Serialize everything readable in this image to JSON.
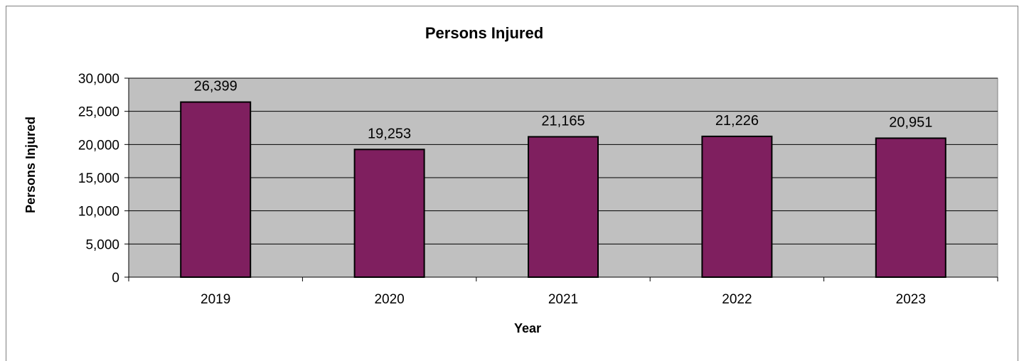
{
  "chart_data": {
    "type": "bar",
    "title": "Persons Injured",
    "xlabel": "Year",
    "ylabel": "Persons Injured",
    "categories": [
      "2019",
      "2020",
      "2021",
      "2022",
      "2023"
    ],
    "values": [
      26399,
      19253,
      21165,
      21226,
      20951
    ],
    "data_labels": [
      "26,399",
      "19,253",
      "21,165",
      "21,226",
      "20,951"
    ],
    "ylim": [
      0,
      30000
    ],
    "yticks": [
      0,
      5000,
      10000,
      15000,
      20000,
      25000,
      30000
    ],
    "ytick_labels": [
      "0",
      "5,000",
      "10,000",
      "15,000",
      "20,000",
      "25,000",
      "30,000"
    ],
    "grid": true,
    "legend": "none",
    "colors": {
      "bar_fill": "#7f1f5f",
      "plot_background": "#c0c0c0",
      "gridline": "#000000"
    }
  }
}
